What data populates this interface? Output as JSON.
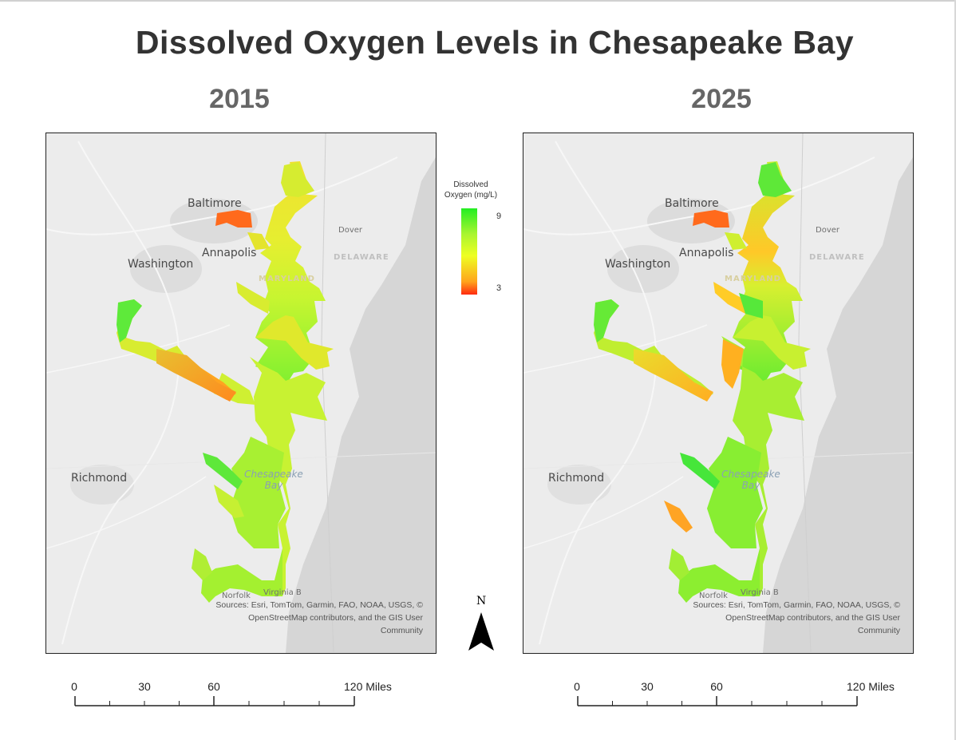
{
  "title": "Dissolved Oxygen Levels in Chesapeake Bay",
  "maps": [
    {
      "year": "2015",
      "place_labels": {
        "baltimore": "Baltimore",
        "annapolis": "Annapolis",
        "washington": "Washington",
        "richmond": "Richmond",
        "dover": "Dover",
        "delaware": "DELAWARE",
        "maryland": "MARYLAND",
        "norfolk": "Norfolk",
        "virginia_beach": "Virginia B",
        "chesapeake": "Chesapeake",
        "bay": "Bay"
      },
      "attribution": "Sources: Esri, TomTom, Garmin, FAO, NOAA, USGS, © OpenStreetMap contributors, and the GIS User Community"
    },
    {
      "year": "2025",
      "place_labels": {
        "baltimore": "Baltimore",
        "annapolis": "Annapolis",
        "washington": "Washington",
        "richmond": "Richmond",
        "dover": "Dover",
        "delaware": "DELAWARE",
        "maryland": "MARYLAND",
        "norfolk": "Norfolk",
        "virginia_beach": "Virginia B",
        "chesapeake": "Chesapeake",
        "bay": "Bay"
      },
      "attribution": "Sources: Esri, TomTom, Garmin, FAO, NOAA, USGS, © OpenStreetMap contributors, and the GIS User Community"
    }
  ],
  "legend": {
    "title_line1": "Dissolved",
    "title_line2": "Oxygen (mg/L)",
    "max_label": "9",
    "min_label": "3",
    "color_high": "#22ee22",
    "color_mid": "#eeff22",
    "color_low": "#ff2a10"
  },
  "north_arrow": {
    "label": "N"
  },
  "scale_bar": {
    "ticks": [
      "0",
      "30",
      "60"
    ],
    "end_label": "120 Miles"
  }
}
